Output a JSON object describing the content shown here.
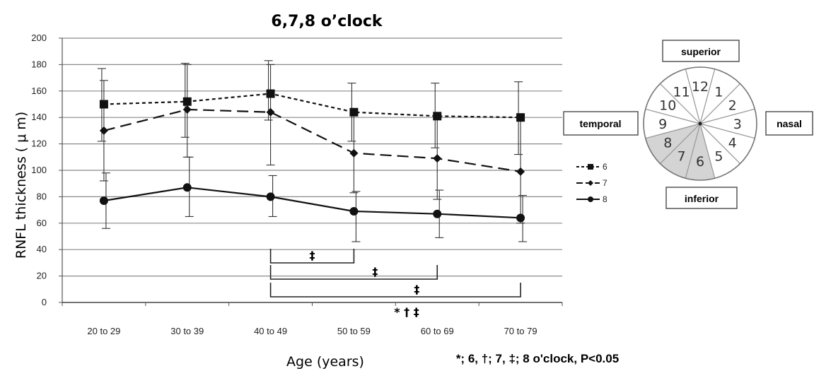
{
  "chart_data": {
    "type": "line",
    "title": "6,7,8  o’clock",
    "ylabel": "RNFL  thickness ( μ m)",
    "xlabel": "Age  (years)",
    "categories": [
      "20 to 29",
      "30 to 39",
      "40 to 49",
      "50 to 59",
      "60 to 69",
      "70 to 79"
    ],
    "ylim": [
      0,
      200
    ],
    "yticks": [
      0,
      20,
      40,
      60,
      80,
      100,
      120,
      140,
      160,
      180,
      200
    ],
    "grid": true,
    "legend_position": "right",
    "series": [
      {
        "name": "6",
        "style": "short-dash",
        "marker": "square",
        "values": [
          150,
          152,
          158,
          144,
          141,
          140
        ],
        "err_upper": [
          177,
          181,
          183,
          166,
          166,
          167
        ],
        "err_lower": [
          122,
          125,
          138,
          122,
          117,
          112
        ]
      },
      {
        "name": "7",
        "style": "long-dash",
        "marker": "diamond",
        "values": [
          130,
          146,
          144,
          113,
          109,
          99
        ],
        "err_upper": [
          168,
          180,
          180,
          143,
          141,
          138
        ],
        "err_lower": [
          92,
          110,
          104,
          83,
          78,
          60
        ]
      },
      {
        "name": "8",
        "style": "solid",
        "marker": "circle",
        "values": [
          77,
          87,
          80,
          69,
          67,
          64
        ],
        "err_upper": [
          98,
          110,
          96,
          84,
          85,
          81
        ],
        "err_lower": [
          56,
          65,
          65,
          46,
          49,
          46
        ]
      }
    ],
    "significance_brackets": [
      {
        "from": "40 to 49",
        "to": "50 to 59",
        "label": "‡"
      },
      {
        "from": "40 to 49",
        "to": "60 to 69",
        "label": "‡"
      },
      {
        "from": "40 to 49",
        "to": "70 to 79",
        "label": "‡"
      }
    ],
    "significance_marker": "* † ‡",
    "footnote": "*; 6, †; 7, ‡; 8 o'clock,  P<0.05"
  },
  "clock_diagram": {
    "superior_label": "superior",
    "inferior_label": "inferior",
    "temporal_label": "temporal",
    "nasal_label": "nasal",
    "numbers": [
      "12",
      "1",
      "2",
      "3",
      "4",
      "5",
      "6",
      "7",
      "8",
      "9",
      "10",
      "11"
    ],
    "highlighted": [
      "6",
      "7",
      "8"
    ],
    "highlight_color": "#d4d4d4",
    "line_color": "#9a9a9a"
  }
}
